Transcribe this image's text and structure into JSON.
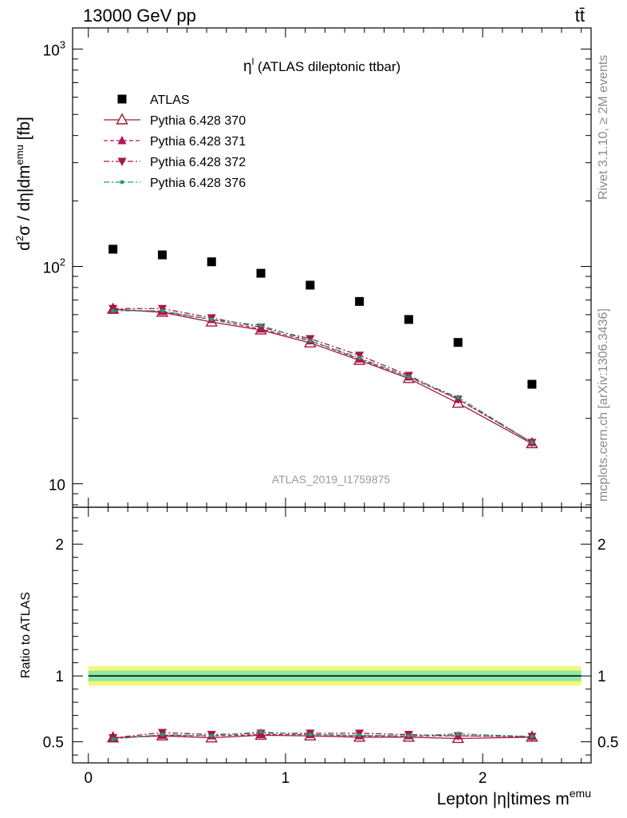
{
  "header": {
    "energy_label": "13000 GeV pp",
    "process_label": "tt̄"
  },
  "side_labels": {
    "rivet": "Rivet 3.1.10, ≥ 2M events",
    "mcplots": "mcplots.cern.ch [arXiv:1306.3436]"
  },
  "watermark": "ATLAS_2019_I1759875",
  "chart_data": [
    {
      "type": "scatter",
      "title_main": "η",
      "title_sup": "l",
      "title_rest": " (ATLAS dileptonic ttbar)",
      "ylabel_parts": [
        "d",
        "2",
        "σ / dη|dm",
        "emu",
        " [fb]"
      ],
      "yscale": "log",
      "ylim": [
        7.8,
        1250
      ],
      "xlim": [
        -0.08,
        2.55
      ],
      "ytick_labels": [
        {
          "value": 10,
          "base": "10",
          "exp": ""
        },
        {
          "value": 100,
          "base": "10",
          "exp": "2"
        },
        {
          "value": 1000,
          "base": "10",
          "exp": "3"
        }
      ],
      "x": [
        0.125,
        0.375,
        0.625,
        0.875,
        1.125,
        1.375,
        1.625,
        1.875,
        2.25
      ],
      "series": [
        {
          "name": "ATLAS",
          "marker": "square",
          "color": "#000000",
          "values": [
            120,
            113,
            105,
            93,
            82,
            69,
            57,
            44.7,
            28.7
          ]
        },
        {
          "name": "Pythia 6.428 370",
          "marker": "triangle-open",
          "line": "solid",
          "color": "#9b1d34",
          "values": [
            63.5,
            61.5,
            55.5,
            51,
            44.5,
            37,
            30.5,
            23.5,
            15.3
          ]
        },
        {
          "name": "Pythia 6.428 371",
          "marker": "triangle-up",
          "line": "dashed",
          "color": "#b0145c",
          "values": [
            63.5,
            62,
            57,
            51.5,
            45.5,
            37.5,
            31,
            24.5,
            15.5
          ]
        },
        {
          "name": "Pythia 6.428 372",
          "marker": "triangle-down",
          "line": "dashdot",
          "color": "#a81744",
          "values": [
            64,
            64,
            58,
            52.5,
            46.5,
            39,
            31.5,
            24.5,
            15.5
          ]
        },
        {
          "name": "Pythia 6.428 376",
          "marker": "dot",
          "line": "dashdot",
          "color": "#1b9e7a",
          "values": [
            62.5,
            62.5,
            57,
            53.5,
            45.5,
            38,
            31,
            25,
            15.5
          ]
        }
      ]
    },
    {
      "type": "line",
      "ylabel": "Ratio to ATLAS",
      "xlabel_parts": [
        "Lepton |η|times m",
        "emu"
      ],
      "ylim": [
        0.34,
        2.28
      ],
      "xlim": [
        -0.08,
        2.55
      ],
      "yticks": [
        0.5,
        1,
        2
      ],
      "ytick_labels": [
        "0.5",
        "1",
        "2"
      ],
      "xticks": [
        0,
        1,
        2
      ],
      "xtick_labels": [
        "0",
        "1",
        "2"
      ],
      "band_inner": 0.04,
      "band_outer": 0.075,
      "band_colors": {
        "outer": "#f4f77a",
        "inner": "#8ee8a6"
      },
      "x": [
        0.125,
        0.375,
        0.625,
        0.875,
        1.125,
        1.375,
        1.625,
        1.875,
        2.25
      ],
      "series": [
        {
          "name": "Pythia 6.428 370",
          "values": [
            0.53,
            0.545,
            0.53,
            0.55,
            0.545,
            0.535,
            0.535,
            0.525,
            0.535
          ]
        },
        {
          "name": "Pythia 6.428 371",
          "values": [
            0.53,
            0.55,
            0.545,
            0.555,
            0.555,
            0.545,
            0.545,
            0.545,
            0.54
          ]
        },
        {
          "name": "Pythia 6.428 372",
          "values": [
            0.53,
            0.57,
            0.555,
            0.565,
            0.565,
            0.565,
            0.555,
            0.545,
            0.54
          ]
        },
        {
          "name": "Pythia 6.428 376",
          "values": [
            0.52,
            0.555,
            0.545,
            0.575,
            0.555,
            0.55,
            0.545,
            0.56,
            0.54
          ]
        }
      ]
    }
  ]
}
